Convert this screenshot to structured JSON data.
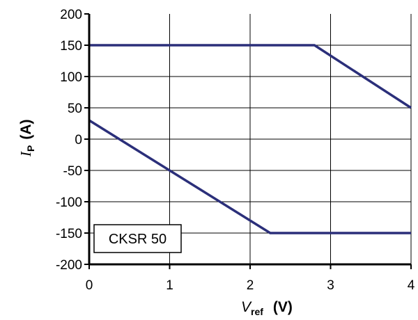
{
  "chart_data": {
    "type": "line",
    "xlabel": {
      "main": "V",
      "sub": "ref",
      "unit": "(V)"
    },
    "ylabel": {
      "main": "I",
      "sub": "P",
      "unit": "(A)"
    },
    "xlim": [
      0,
      4
    ],
    "ylim": [
      -200,
      200
    ],
    "x_ticks": [
      "0",
      "1",
      "2",
      "3",
      "4"
    ],
    "y_ticks": [
      "200",
      "150",
      "100",
      "50",
      "0",
      "-50",
      "-100",
      "-150",
      "-200"
    ],
    "grid": true,
    "series": [
      {
        "color": "#2b2f7a",
        "points": [
          [
            0,
            150
          ],
          [
            2.8,
            150
          ],
          [
            4,
            50
          ]
        ]
      },
      {
        "color": "#2b2f7a",
        "points": [
          [
            0,
            30
          ],
          [
            2.25,
            -150
          ],
          [
            4,
            -150
          ]
        ]
      }
    ],
    "annotation": {
      "text": "CKSR 50"
    }
  }
}
